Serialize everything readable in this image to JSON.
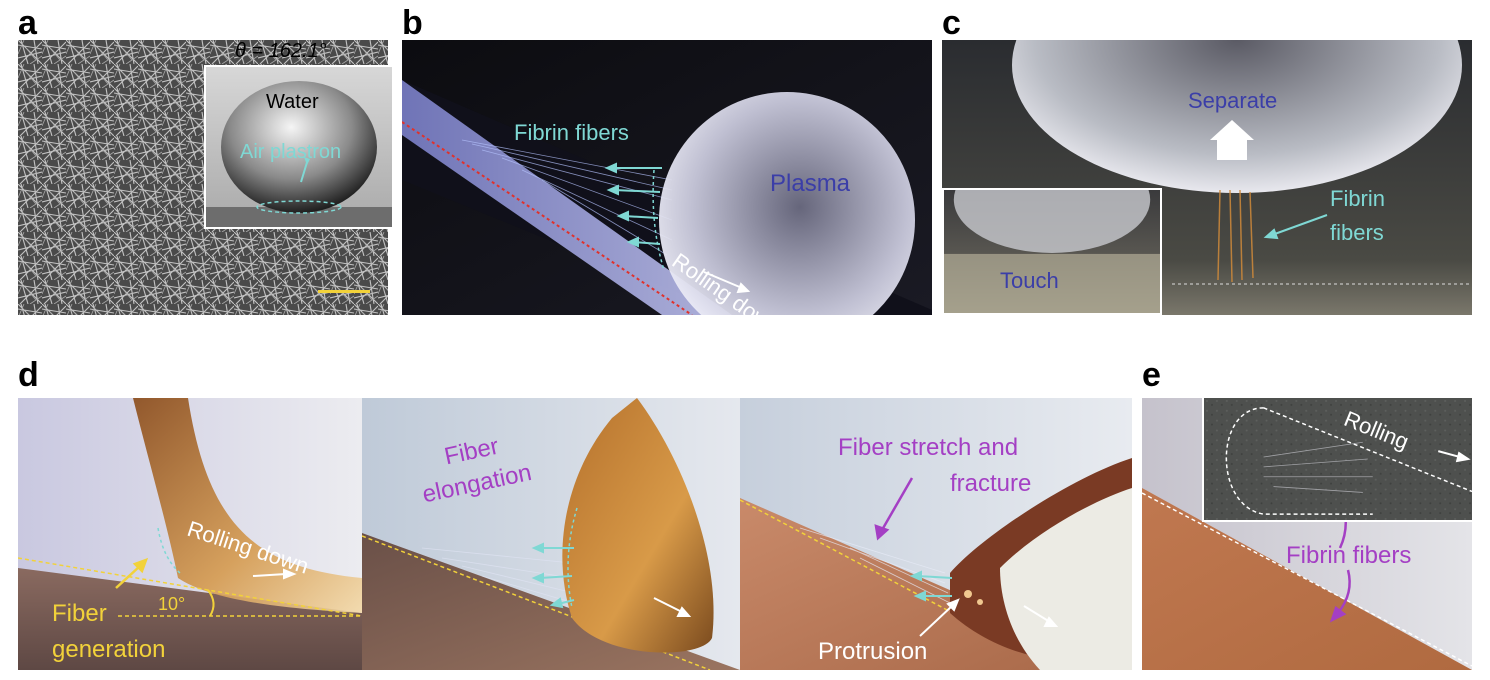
{
  "panels": {
    "a": {
      "letter": "a",
      "angle": "θ = 162.1°",
      "water": "Water",
      "plastron": "Air plastron"
    },
    "b": {
      "letter": "b",
      "fibers": "Fibrin fibers",
      "plasma": "Plasma",
      "rolling": "Rolling down"
    },
    "c": {
      "letter": "c",
      "separate": "Separate",
      "fibrin1": "Fibrin",
      "fibrin2": "fibers",
      "touch": "Touch"
    },
    "d": {
      "letter": "d",
      "rolling": "Rolling down",
      "angle": "10°",
      "gen1": "Fiber",
      "gen2": "generation",
      "elong1": "Fiber",
      "elong2": "elongation",
      "stretch1": "Fiber stretch and",
      "stretch2": "fracture",
      "protrusion": "Protrusion"
    },
    "e": {
      "letter": "e",
      "rolling": "Rolling",
      "fibers": "Fibrin fibers"
    }
  },
  "colors": {
    "cyan": "#7fd8d4",
    "blue_label": "#3b3ea8",
    "purple": "#a43fc4",
    "yellow": "#f2d23a",
    "red_dash": "#e0322b"
  }
}
